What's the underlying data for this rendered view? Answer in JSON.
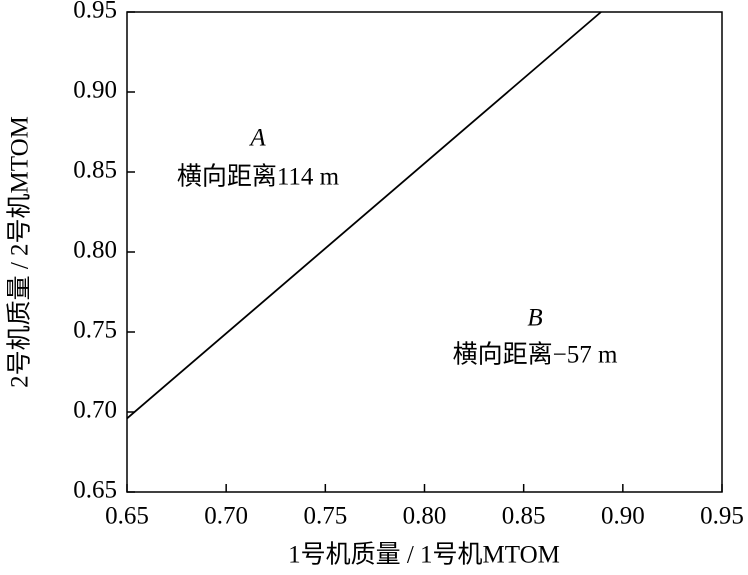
{
  "chart_data": {
    "type": "line",
    "x": [
      0.65,
      0.889
    ],
    "series": [
      {
        "color": "#000000",
        "values": [
          0.696,
          0.95
        ]
      }
    ],
    "xlabel": "1号机质量 / 1号机MTOM",
    "ylabel": "2号机质量 / 2号机MTOM",
    "xlim": [
      0.65,
      0.95
    ],
    "ylim": [
      0.65,
      0.95
    ],
    "xticks": [
      0.65,
      {
        "value": 0.7,
        "label": "0.70"
      },
      0.75,
      {
        "value": 0.8,
        "label": "0.80"
      },
      0.85,
      {
        "value": 0.9,
        "label": "0.90"
      },
      0.95
    ],
    "yticks": [
      0.65,
      {
        "value": 0.7,
        "label": "0.70"
      },
      0.75,
      {
        "value": 0.8,
        "label": "0.80"
      },
      0.85,
      {
        "value": 0.9,
        "label": "0.90"
      },
      0.95
    ],
    "annotations": [
      "A",
      "横向距离114 m",
      "B",
      "横向距离−57 m"
    ]
  }
}
